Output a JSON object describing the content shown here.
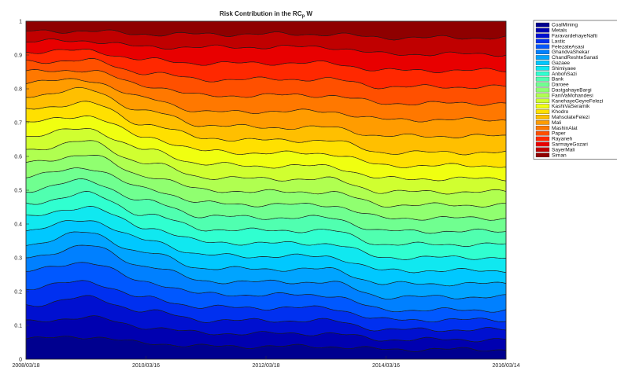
{
  "chart_data": {
    "type": "area",
    "title": "Risk Contribution in the RC",
    "title_subscript": "p",
    "title_suffix": " W",
    "xlabel": "",
    "ylabel": "",
    "x_ticks": [
      "2008/03/18",
      "2010/03/16",
      "2012/03/18",
      "2014/03/16",
      "2016/03/14"
    ],
    "x": [
      "2008/03/18",
      "2009/03/17",
      "2010/03/16",
      "2011/03/17",
      "2012/03/18",
      "2013/03/17",
      "2014/03/16",
      "2015/03/15",
      "2016/03/14"
    ],
    "ylim": [
      0,
      1
    ],
    "y_ticks": [
      0,
      0.1,
      0.2,
      0.3,
      0.4,
      0.5,
      0.6,
      0.7,
      0.8,
      0.9,
      1
    ],
    "stacked": true,
    "legend_position": "right-outside",
    "grid": false,
    "series": [
      {
        "name": "CoalMining",
        "color": "#00008f",
        "values": [
          0.06,
          0.07,
          0.05,
          0.04,
          0.04,
          0.04,
          0.03,
          0.03,
          0.03
        ]
      },
      {
        "name": "Metals",
        "color": "#0000b0",
        "values": [
          0.05,
          0.06,
          0.05,
          0.04,
          0.04,
          0.04,
          0.03,
          0.03,
          0.03
        ]
      },
      {
        "name": "FaravardehayeNafti",
        "color": "#0010d0",
        "values": [
          0.05,
          0.06,
          0.05,
          0.04,
          0.04,
          0.04,
          0.03,
          0.03,
          0.03
        ]
      },
      {
        "name": "Lastic",
        "color": "#0030f0",
        "values": [
          0.05,
          0.05,
          0.04,
          0.04,
          0.04,
          0.04,
          0.03,
          0.03,
          0.03
        ]
      },
      {
        "name": "FelezateAsasi",
        "color": "#0058ff",
        "values": [
          0.05,
          0.06,
          0.05,
          0.04,
          0.04,
          0.04,
          0.03,
          0.03,
          0.03
        ]
      },
      {
        "name": "GhandvaShekar",
        "color": "#0080ff",
        "values": [
          0.04,
          0.05,
          0.05,
          0.04,
          0.04,
          0.04,
          0.04,
          0.04,
          0.04
        ]
      },
      {
        "name": "ChandReshteSanati",
        "color": "#00a4ff",
        "values": [
          0.04,
          0.04,
          0.04,
          0.04,
          0.04,
          0.04,
          0.04,
          0.04,
          0.04
        ]
      },
      {
        "name": "Gazaee",
        "color": "#00c8ff",
        "values": [
          0.04,
          0.04,
          0.04,
          0.04,
          0.04,
          0.04,
          0.04,
          0.04,
          0.04
        ]
      },
      {
        "name": "Shimiyaee",
        "color": "#10e8f0",
        "values": [
          0.04,
          0.04,
          0.04,
          0.04,
          0.04,
          0.04,
          0.04,
          0.04,
          0.04
        ]
      },
      {
        "name": "AnbohSazi",
        "color": "#30ffd0",
        "values": [
          0.04,
          0.04,
          0.04,
          0.04,
          0.04,
          0.04,
          0.04,
          0.04,
          0.04
        ]
      },
      {
        "name": "Bank",
        "color": "#50ffb0",
        "values": [
          0.04,
          0.04,
          0.04,
          0.04,
          0.04,
          0.04,
          0.04,
          0.04,
          0.04
        ]
      },
      {
        "name": "Daroee",
        "color": "#70ff90",
        "values": [
          0.04,
          0.04,
          0.04,
          0.04,
          0.04,
          0.04,
          0.04,
          0.04,
          0.04
        ]
      },
      {
        "name": "DastgahayeBargi",
        "color": "#90ff70",
        "values": [
          0.04,
          0.04,
          0.04,
          0.04,
          0.04,
          0.04,
          0.04,
          0.04,
          0.04
        ]
      },
      {
        "name": "FaniVaMohandesi",
        "color": "#b0ff50",
        "values": [
          0.04,
          0.04,
          0.04,
          0.04,
          0.04,
          0.04,
          0.04,
          0.04,
          0.04
        ]
      },
      {
        "name": "KanehayeGeyreFelezi",
        "color": "#d0ff30",
        "values": [
          0.04,
          0.04,
          0.04,
          0.04,
          0.04,
          0.04,
          0.04,
          0.04,
          0.04
        ]
      },
      {
        "name": "KashiVaSeramik",
        "color": "#f0ff10",
        "values": [
          0.04,
          0.04,
          0.04,
          0.04,
          0.04,
          0.04,
          0.04,
          0.04,
          0.04
        ]
      },
      {
        "name": "Khodro",
        "color": "#ffe000",
        "values": [
          0.04,
          0.04,
          0.04,
          0.04,
          0.04,
          0.04,
          0.04,
          0.04,
          0.04
        ]
      },
      {
        "name": "MahsolateFelezi",
        "color": "#ffbf00",
        "values": [
          0.04,
          0.04,
          0.04,
          0.04,
          0.04,
          0.04,
          0.05,
          0.05,
          0.05
        ]
      },
      {
        "name": "Mali",
        "color": "#ff9c00",
        "values": [
          0.04,
          0.03,
          0.04,
          0.04,
          0.05,
          0.05,
          0.05,
          0.05,
          0.05
        ]
      },
      {
        "name": "MashinAlat",
        "color": "#ff7800",
        "values": [
          0.03,
          0.03,
          0.04,
          0.05,
          0.05,
          0.05,
          0.05,
          0.05,
          0.05
        ]
      },
      {
        "name": "Paper",
        "color": "#ff5000",
        "values": [
          0.03,
          0.03,
          0.04,
          0.05,
          0.05,
          0.05,
          0.05,
          0.05,
          0.05
        ]
      },
      {
        "name": "Rayaneh",
        "color": "#ff2800",
        "values": [
          0.03,
          0.03,
          0.04,
          0.05,
          0.05,
          0.05,
          0.05,
          0.05,
          0.05
        ]
      },
      {
        "name": "SarmayeGozari",
        "color": "#e80000",
        "values": [
          0.03,
          0.03,
          0.04,
          0.05,
          0.05,
          0.05,
          0.05,
          0.05,
          0.05
        ]
      },
      {
        "name": "SayerMali",
        "color": "#c00000",
        "values": [
          0.03,
          0.03,
          0.04,
          0.04,
          0.04,
          0.04,
          0.05,
          0.05,
          0.05
        ]
      },
      {
        "name": "Siman",
        "color": "#8f0000",
        "values": [
          0.03,
          0.03,
          0.04,
          0.04,
          0.04,
          0.04,
          0.05,
          0.05,
          0.05
        ]
      }
    ]
  }
}
